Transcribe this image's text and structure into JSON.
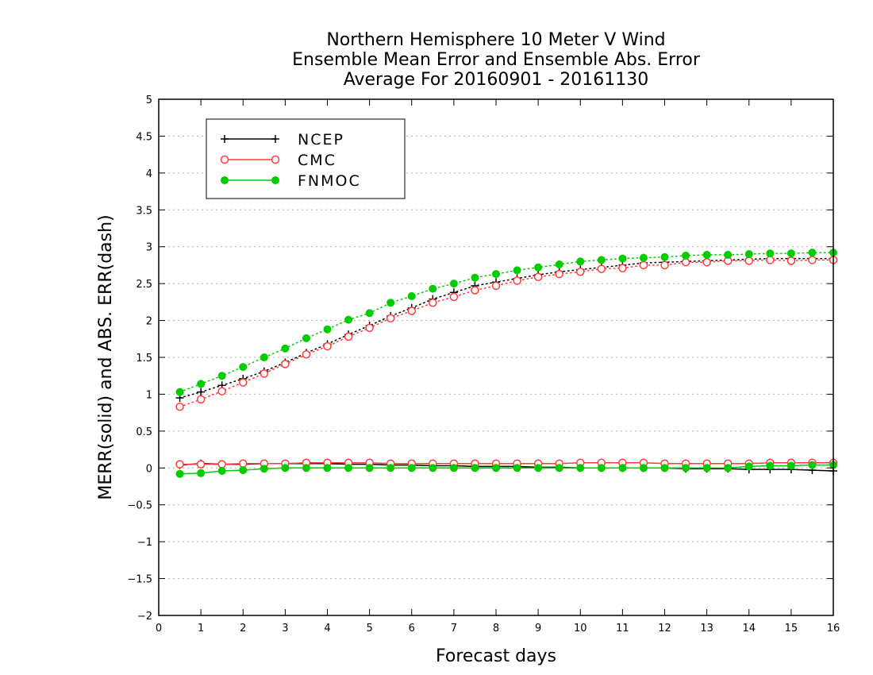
{
  "chart_data": {
    "type": "line",
    "title": [
      "Northern Hemisphere 10 Meter V Wind",
      "Ensemble Mean Error and Ensemble Abs. Error",
      "Average For 20160901 - 20161130"
    ],
    "xlabel": "Forecast days",
    "ylabel": "MERR(solid) and ABS. ERR(dash)",
    "xlim": [
      0,
      16
    ],
    "ylim": [
      -2,
      5
    ],
    "xticks": [
      "0",
      "1",
      "2",
      "3",
      "4",
      "5",
      "6",
      "7",
      "8",
      "9",
      "10",
      "11",
      "12",
      "13",
      "14",
      "15",
      "16"
    ],
    "yticks": [
      "−2",
      "−1.5",
      "−1",
      "−0.5",
      "0",
      "0.5",
      "1",
      "1.5",
      "2",
      "2.5",
      "3",
      "3.5",
      "4",
      "4.5",
      "5"
    ],
    "grid": true,
    "legend_position": "top-left",
    "x": [
      0.5,
      1,
      1.5,
      2,
      2.5,
      3,
      3.5,
      4,
      4.5,
      5,
      5.5,
      6,
      6.5,
      7,
      7.5,
      8,
      8.5,
      9,
      9.5,
      10,
      10.5,
      11,
      11.5,
      12,
      12.5,
      13,
      13.5,
      14,
      14.5,
      15,
      15.5,
      16
    ],
    "series": [
      {
        "name": "NCEP",
        "color": "#000000",
        "marker": "plus",
        "abs_err": [
          0.95,
          1.03,
          1.12,
          1.21,
          1.31,
          1.43,
          1.56,
          1.68,
          1.81,
          1.93,
          2.06,
          2.17,
          2.29,
          2.38,
          2.47,
          2.52,
          2.57,
          2.62,
          2.66,
          2.69,
          2.72,
          2.75,
          2.78,
          2.79,
          2.8,
          2.81,
          2.82,
          2.83,
          2.84,
          2.84,
          2.84,
          2.84
        ],
        "mean_err": [
          0.04,
          0.06,
          0.05,
          0.05,
          0.06,
          0.06,
          0.06,
          0.06,
          0.05,
          0.05,
          0.04,
          0.04,
          0.03,
          0.03,
          0.02,
          0.02,
          0.02,
          0.01,
          0.01,
          0.0,
          0.0,
          0.0,
          0.0,
          0.0,
          -0.01,
          -0.01,
          -0.01,
          -0.02,
          -0.02,
          -0.02,
          -0.03,
          -0.04
        ]
      },
      {
        "name": "CMC",
        "color": "#ff3b3b",
        "marker": "open-circle",
        "abs_err": [
          0.83,
          0.93,
          1.04,
          1.16,
          1.28,
          1.41,
          1.54,
          1.65,
          1.78,
          1.9,
          2.03,
          2.13,
          2.24,
          2.32,
          2.41,
          2.47,
          2.54,
          2.59,
          2.63,
          2.66,
          2.7,
          2.71,
          2.75,
          2.75,
          2.79,
          2.79,
          2.81,
          2.81,
          2.82,
          2.81,
          2.82,
          2.82
        ],
        "mean_err": [
          0.05,
          0.05,
          0.05,
          0.06,
          0.06,
          0.06,
          0.07,
          0.07,
          0.07,
          0.07,
          0.06,
          0.06,
          0.06,
          0.06,
          0.06,
          0.06,
          0.06,
          0.06,
          0.06,
          0.07,
          0.07,
          0.07,
          0.07,
          0.06,
          0.06,
          0.06,
          0.06,
          0.06,
          0.07,
          0.07,
          0.07,
          0.07
        ]
      },
      {
        "name": "FNMOC",
        "color": "#00cc00",
        "marker": "filled-circle",
        "abs_err": [
          1.03,
          1.14,
          1.25,
          1.37,
          1.5,
          1.62,
          1.76,
          1.88,
          2.01,
          2.1,
          2.24,
          2.33,
          2.43,
          2.5,
          2.58,
          2.63,
          2.68,
          2.72,
          2.76,
          2.8,
          2.82,
          2.84,
          2.85,
          2.86,
          2.88,
          2.89,
          2.89,
          2.9,
          2.91,
          2.91,
          2.92,
          2.92
        ],
        "mean_err": [
          -0.08,
          -0.07,
          -0.04,
          -0.03,
          -0.01,
          0.0,
          0.0,
          0.0,
          0.0,
          0.0,
          0.0,
          0.0,
          0.0,
          0.0,
          0.0,
          0.0,
          0.0,
          0.0,
          0.0,
          0.0,
          0.0,
          0.0,
          0.0,
          0.0,
          0.0,
          0.0,
          0.0,
          0.02,
          0.03,
          0.03,
          0.04,
          0.04
        ]
      }
    ]
  }
}
